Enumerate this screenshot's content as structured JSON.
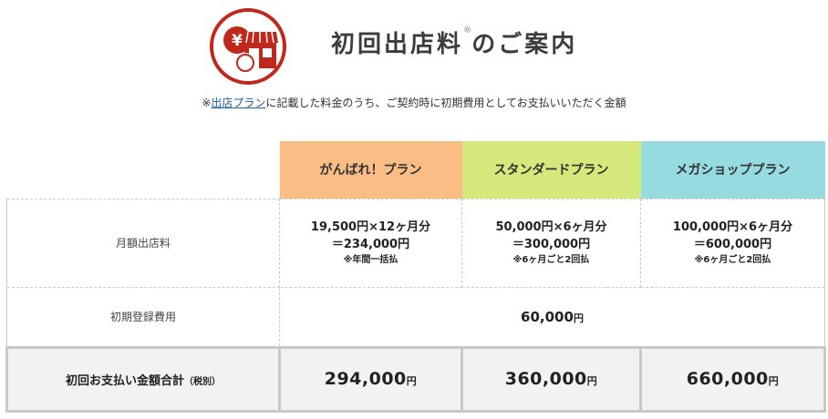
{
  "header": {
    "title": "初回出店料",
    "title_mark": "※",
    "title_suffix": "のご案内",
    "logo_icon": "yen-shop-icon",
    "logo_symbol": "¥",
    "brand_color": "#c0281c"
  },
  "note": {
    "prefix": "※",
    "link_text": "出店プラン",
    "suffix": "に記載した料金のうち、ご契約時に初期費用としてお支払いいただく金額"
  },
  "plans": [
    {
      "name": "がんばれ！プラン",
      "color": "#fbbd86"
    },
    {
      "name": "スタンダードプラン",
      "color": "#d5e87b"
    },
    {
      "name": "メガショッププラン",
      "color": "#96dbe0"
    }
  ],
  "rows": {
    "monthly": {
      "label": "月額出店料",
      "cells": [
        {
          "line1": "19,500円×12ヶ月分",
          "line2": "＝234,000円",
          "note": "※年間一括払"
        },
        {
          "line1": "50,000円×6ヶ月分",
          "line2": "＝300,000円",
          "note": "※6ヶ月ごと2回払"
        },
        {
          "line1": "100,000円×6ヶ月分",
          "line2": "＝600,000円",
          "note": "※6ヶ月ごと2回払"
        }
      ]
    },
    "initial": {
      "label": "初期登録費用",
      "value": "60,000",
      "unit": "円"
    },
    "total": {
      "label": "初回お支払い金額合計",
      "label_paren": "（税別）",
      "values": [
        "294,000",
        "360,000",
        "660,000"
      ],
      "unit": "円"
    }
  }
}
